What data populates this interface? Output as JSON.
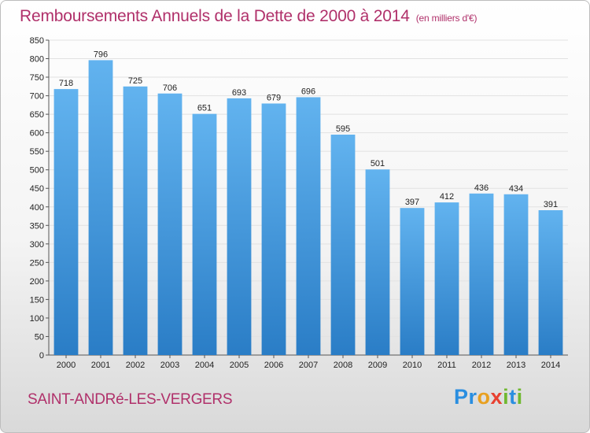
{
  "chart_data": {
    "type": "bar",
    "title": "Remboursements Annuels de la Dette de 2000 à 2014",
    "unit_label": "(en milliers d'€)",
    "categories": [
      "2000",
      "2001",
      "2002",
      "2003",
      "2004",
      "2005",
      "2006",
      "2007",
      "2008",
      "2009",
      "2010",
      "2011",
      "2012",
      "2013",
      "2014"
    ],
    "values": [
      718,
      796,
      725,
      706,
      651,
      693,
      679,
      696,
      595,
      501,
      397,
      412,
      436,
      434,
      391
    ],
    "xlabel": "",
    "ylabel": "",
    "ylim": [
      0,
      850
    ],
    "yticks": [
      0,
      50,
      100,
      150,
      200,
      250,
      300,
      350,
      400,
      450,
      500,
      550,
      600,
      650,
      700,
      750,
      800,
      850
    ],
    "grid": true,
    "legend": "none"
  },
  "footer": {
    "city": "SAINT-ANDRé-LES-VERGERS",
    "logo_letters": [
      "P",
      "r",
      "o",
      "x",
      "i",
      "t",
      "i"
    ]
  },
  "colors": {
    "title": "#b0306a",
    "bar_top": "#62b3ef",
    "bar_bottom": "#2a7dc6",
    "logo": [
      "#2a8ee0",
      "#2a8ee0",
      "#e8a020",
      "#e84030",
      "#70b830",
      "#2a8ee0",
      "#70b830"
    ]
  }
}
